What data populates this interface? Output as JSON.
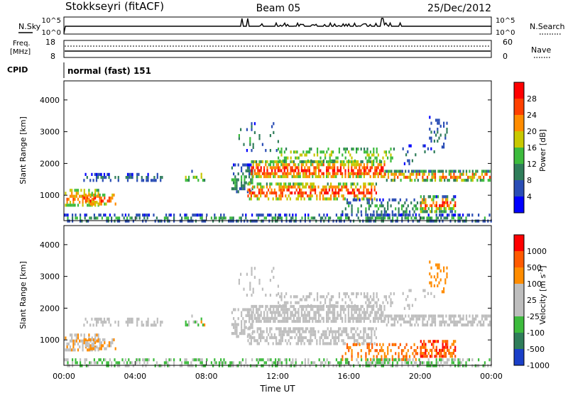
{
  "header": {
    "station": "Stokkseyri (fitACF)",
    "beam": "Beam 05",
    "date": "25/Dec/2012"
  },
  "noise_panel": {
    "left_label": "N.Sky",
    "right_label": "N.Search",
    "left_ticks": [
      "10^5",
      "10^0"
    ],
    "right_ticks": [
      "10^5",
      "10^0"
    ]
  },
  "freq_panel": {
    "left_label_1": "Freq.",
    "left_label_2": "[MHz]",
    "right_label": "Nave",
    "left_ticks": [
      "18",
      "8"
    ],
    "right_ticks": [
      "60",
      "0"
    ]
  },
  "cpid": {
    "label": "CPID",
    "text": "normal (fast) 151"
  },
  "chart_data": [
    {
      "type": "heatmap",
      "name": "power",
      "ylabel": "Slant Range [km]",
      "ylim": [
        200,
        4600
      ],
      "yticks": [
        "1000",
        "2000",
        "3000",
        "4000"
      ],
      "xlim": [
        "00:00",
        "24:00"
      ],
      "colorbar_label": "Power [dB]",
      "colorbar_ticks": [
        "28",
        "24",
        "20",
        "16",
        "12",
        "8",
        "4"
      ],
      "colors": [
        "#0000ff",
        "#2a4db5",
        "#2f7d5a",
        "#3dbb3d",
        "#c8c800",
        "#ff8c00",
        "#ff4000",
        "#ff0000"
      ]
    },
    {
      "type": "heatmap",
      "name": "velocity",
      "ylabel": "Slant Range [km]",
      "ylim": [
        200,
        4600
      ],
      "yticks": [
        "1000",
        "2000",
        "3000",
        "4000"
      ],
      "xlim": [
        "00:00",
        "24:00"
      ],
      "xticks": [
        "00:00",
        "04:00",
        "08:00",
        "12:00",
        "16:00",
        "20:00",
        "00:00"
      ],
      "xlabel": "Time UT",
      "colorbar_label": "Velocity [m s",
      "colorbar_label_sup": "-1",
      "colorbar_label_end": "]",
      "colorbar_ticks": [
        "1000",
        "500",
        "100",
        "25",
        "-25",
        "-100",
        "-500",
        "-1000"
      ],
      "colors": [
        "#1a3fc8",
        "#2f7d5a",
        "#3dbb3d",
        "#bebebe",
        "#bebebe",
        "#ff8c00",
        "#ff5a00",
        "#ff0000"
      ]
    }
  ]
}
